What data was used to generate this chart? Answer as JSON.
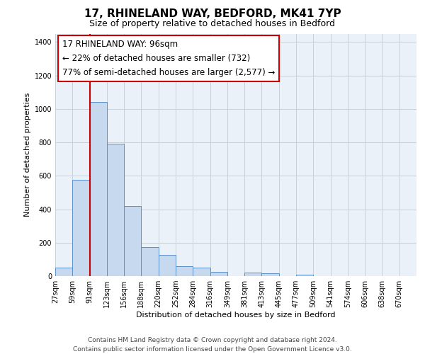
{
  "title": "17, RHINELAND WAY, BEDFORD, MK41 7YP",
  "subtitle": "Size of property relative to detached houses in Bedford",
  "xlabel": "Distribution of detached houses by size in Bedford",
  "ylabel": "Number of detached properties",
  "bar_values": [
    50,
    575,
    1040,
    790,
    420,
    175,
    125,
    60,
    50,
    25,
    0,
    20,
    15,
    0,
    10
  ],
  "all_labels": [
    "27sqm",
    "59sqm",
    "91sqm",
    "123sqm",
    "156sqm",
    "188sqm",
    "220sqm",
    "252sqm",
    "284sqm",
    "316sqm",
    "349sqm",
    "381sqm",
    "413sqm",
    "445sqm",
    "477sqm",
    "509sqm",
    "541sqm",
    "574sqm",
    "606sqm",
    "638sqm",
    "670sqm"
  ],
  "bar_color": "#c6d9ee",
  "bar_edge_color": "#5b8fc9",
  "bar_width": 1.0,
  "red_line_color": "#cc0000",
  "red_line_bin_index": 2,
  "annotation_line1": "17 RHINELAND WAY: 96sqm",
  "annotation_line2": "← 22% of detached houses are smaller (732)",
  "annotation_line3": "77% of semi-detached houses are larger (2,577) →",
  "ylim": [
    0,
    1450
  ],
  "yticks": [
    0,
    200,
    400,
    600,
    800,
    1000,
    1200,
    1400
  ],
  "footer_line1": "Contains HM Land Registry data © Crown copyright and database right 2024.",
  "footer_line2": "Contains public sector information licensed under the Open Government Licence v3.0.",
  "background_color": "#ffffff",
  "plot_bg_color": "#eaf1f8",
  "grid_color": "#c8d0d8",
  "title_fontsize": 11,
  "subtitle_fontsize": 9,
  "axis_label_fontsize": 8,
  "tick_fontsize": 7,
  "annotation_fontsize": 8.5,
  "footer_fontsize": 6.5
}
